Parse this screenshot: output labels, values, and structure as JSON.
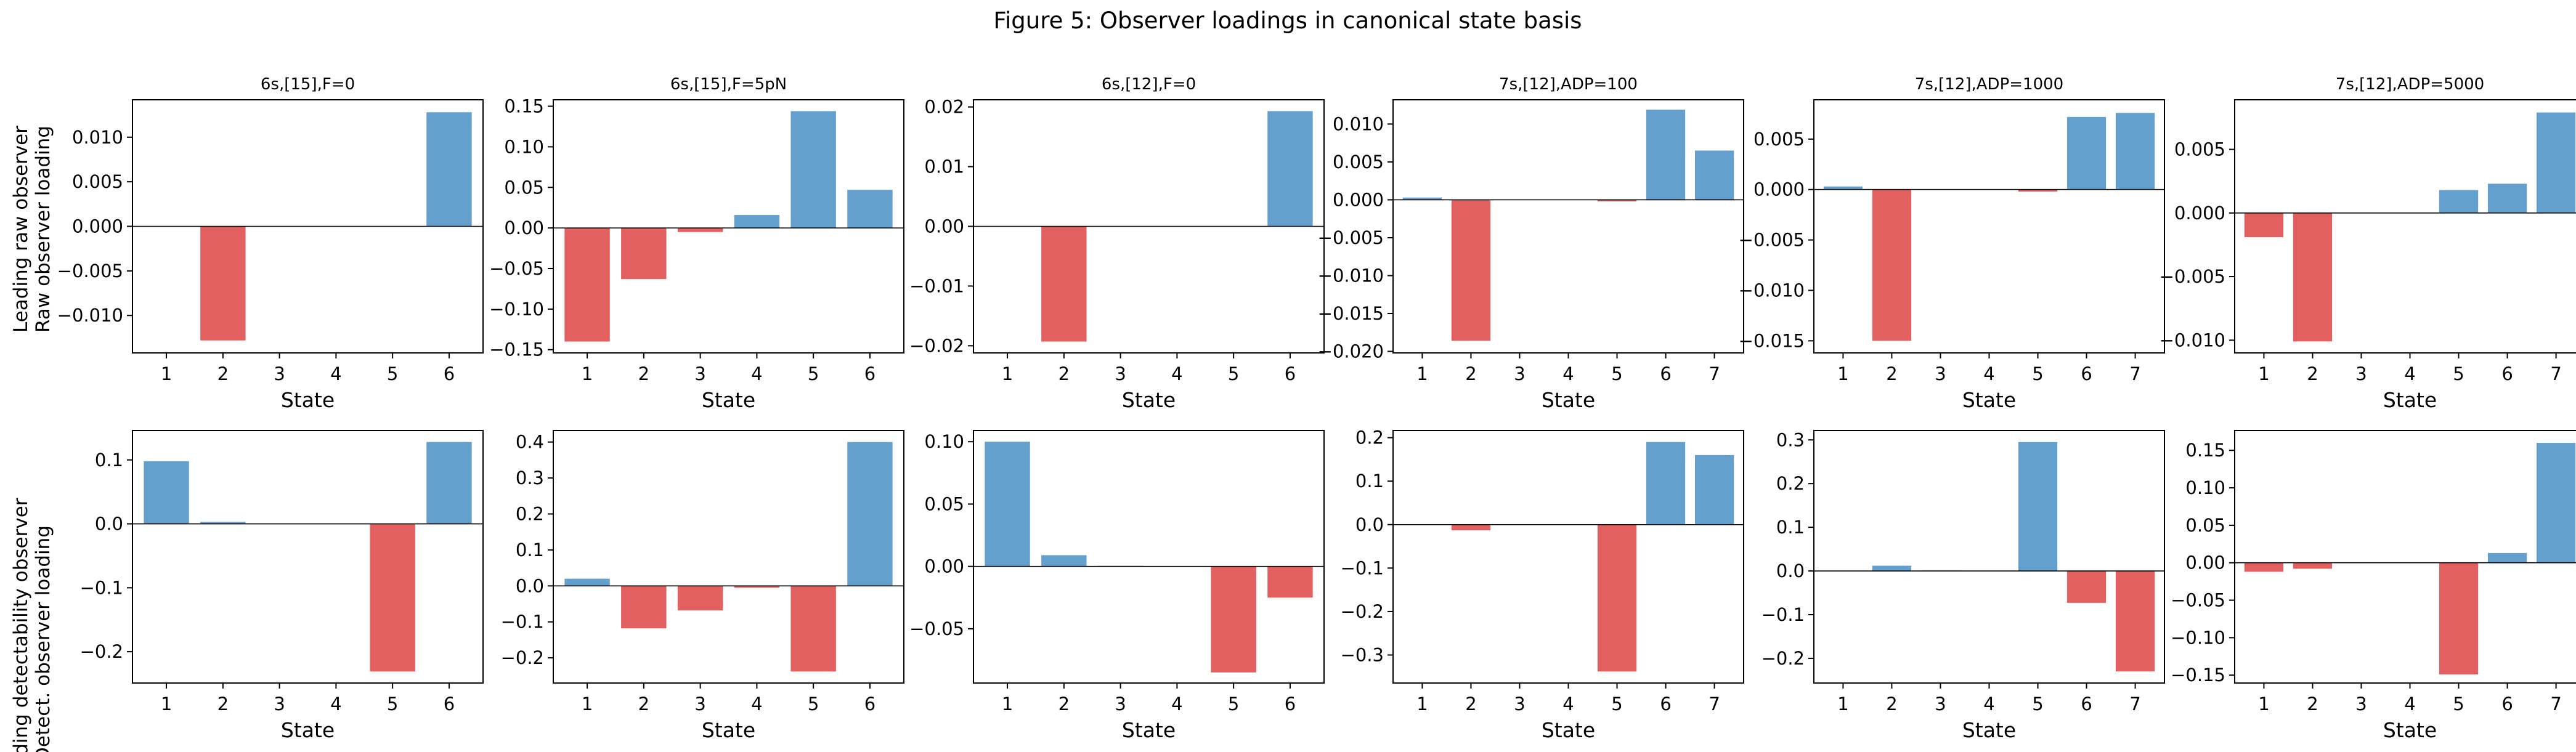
{
  "figure": {
    "title": "Figure 5: Observer loadings in canonical state basis",
    "row_labels": [
      [
        "Leading raw observer",
        "Raw observer loading"
      ],
      [
        "Leading detectability observer",
        "Detect. observer loading"
      ]
    ]
  },
  "colors": {
    "positive": "#5b9bcb",
    "negative": "#e15759",
    "zero_line": "#000000",
    "frame": "#000000"
  },
  "chart_data": [
    {
      "type": "bar",
      "title": "6s,[15],F=0",
      "xlabel": "State",
      "ylabel": "",
      "categories": [
        "1",
        "2",
        "3",
        "4",
        "5",
        "6"
      ],
      "values": [
        0,
        -0.0128,
        0,
        0,
        0,
        0.0128
      ],
      "ylim": [
        -0.0142,
        0.0142
      ],
      "yticks": [
        -0.01,
        -0.005,
        0.0,
        0.005,
        0.01
      ],
      "ytick_labels": [
        "−0.010",
        "−0.005",
        "0.000",
        "0.005",
        "0.010"
      ]
    },
    {
      "type": "bar",
      "title": "6s,[15],F=5pN",
      "xlabel": "State",
      "ylabel": "",
      "categories": [
        "1",
        "2",
        "3",
        "4",
        "5",
        "6"
      ],
      "values": [
        -0.14,
        -0.063,
        -0.005,
        0.016,
        0.144,
        0.047
      ],
      "ylim": [
        -0.154,
        0.158
      ],
      "yticks": [
        -0.15,
        -0.1,
        -0.05,
        0.0,
        0.05,
        0.1,
        0.15
      ],
      "ytick_labels": [
        "−0.15",
        "−0.10",
        "−0.05",
        "0.00",
        "0.05",
        "0.10",
        "0.15"
      ]
    },
    {
      "type": "bar",
      "title": "6s,[12],F=0",
      "xlabel": "State",
      "ylabel": "",
      "categories": [
        "1",
        "2",
        "3",
        "4",
        "5",
        "6"
      ],
      "values": [
        0,
        -0.0193,
        0,
        0,
        0,
        0.0193
      ],
      "ylim": [
        -0.0212,
        0.0212
      ],
      "yticks": [
        -0.02,
        -0.01,
        0.0,
        0.01,
        0.02
      ],
      "ytick_labels": [
        "−0.02",
        "−0.01",
        "0.00",
        "0.01",
        "0.02"
      ]
    },
    {
      "type": "bar",
      "title": "7s,[12],ADP=100",
      "xlabel": "State",
      "ylabel": "",
      "categories": [
        "1",
        "2",
        "3",
        "4",
        "5",
        "6",
        "7"
      ],
      "values": [
        0.0003,
        -0.0186,
        0,
        0,
        -0.0002,
        0.0119,
        0.0065
      ],
      "ylim": [
        -0.0202,
        0.0132
      ],
      "yticks": [
        -0.02,
        -0.015,
        -0.01,
        -0.005,
        0.0,
        0.005,
        0.01
      ],
      "ytick_labels": [
        "−0.020",
        "−0.015",
        "−0.010",
        "−0.005",
        "0.000",
        "0.005",
        "0.010"
      ]
    },
    {
      "type": "bar",
      "title": "7s,[12],ADP=1000",
      "xlabel": "State",
      "ylabel": "",
      "categories": [
        "1",
        "2",
        "3",
        "4",
        "5",
        "6",
        "7"
      ],
      "values": [
        0.0003,
        -0.015,
        0,
        0,
        -0.0002,
        0.0072,
        0.0076
      ],
      "ylim": [
        -0.0162,
        0.0089
      ],
      "yticks": [
        -0.015,
        -0.01,
        -0.005,
        0.0,
        0.005
      ],
      "ytick_labels": [
        "−0.015",
        "−0.010",
        "−0.005",
        "0.000",
        "0.005"
      ]
    },
    {
      "type": "bar",
      "title": "7s,[12],ADP=5000",
      "xlabel": "State",
      "ylabel": "",
      "categories": [
        "1",
        "2",
        "3",
        "4",
        "5",
        "6",
        "7"
      ],
      "values": [
        -0.0019,
        -0.0101,
        0,
        0,
        0.0018,
        0.0023,
        0.0079
      ],
      "ylim": [
        -0.011,
        0.0089
      ],
      "yticks": [
        -0.01,
        -0.005,
        0.0,
        0.005
      ],
      "ytick_labels": [
        "−0.010",
        "−0.005",
        "0.000",
        "0.005"
      ]
    },
    {
      "type": "bar",
      "title": "",
      "xlabel": "State",
      "ylabel": "",
      "categories": [
        "1",
        "2",
        "3",
        "4",
        "5",
        "6"
      ],
      "values": [
        0.098,
        0.003,
        0,
        0,
        -0.231,
        0.128
      ],
      "ylim": [
        -0.249,
        0.146
      ],
      "yticks": [
        -0.2,
        -0.1,
        0.0,
        0.1
      ],
      "ytick_labels": [
        "−0.2",
        "−0.1",
        "0.0",
        "0.1"
      ]
    },
    {
      "type": "bar",
      "title": "",
      "xlabel": "State",
      "ylabel": "",
      "categories": [
        "1",
        "2",
        "3",
        "4",
        "5",
        "6"
      ],
      "values": [
        0.02,
        -0.118,
        -0.068,
        -0.005,
        -0.238,
        0.4
      ],
      "ylim": [
        -0.27,
        0.432
      ],
      "yticks": [
        -0.2,
        -0.1,
        0.0,
        0.1,
        0.2,
        0.3,
        0.4
      ],
      "ytick_labels": [
        "−0.2",
        "−0.1",
        "0.0",
        "0.1",
        "0.2",
        "0.3",
        "0.4"
      ]
    },
    {
      "type": "bar",
      "title": "",
      "xlabel": "State",
      "ylabel": "",
      "categories": [
        "1",
        "2",
        "3",
        "4",
        "5",
        "6"
      ],
      "values": [
        0.1,
        0.009,
        0.0005,
        0,
        -0.085,
        -0.025
      ],
      "ylim": [
        -0.0935,
        0.109
      ],
      "yticks": [
        -0.05,
        0.0,
        0.05,
        0.1
      ],
      "ytick_labels": [
        "−0.05",
        "0.00",
        "0.05",
        "0.10"
      ]
    },
    {
      "type": "bar",
      "title": "",
      "xlabel": "State",
      "ylabel": "",
      "categories": [
        "1",
        "2",
        "3",
        "4",
        "5",
        "6",
        "7"
      ],
      "values": [
        0,
        -0.013,
        0,
        0,
        -0.338,
        0.19,
        0.16
      ],
      "ylim": [
        -0.3645,
        0.2165
      ],
      "yticks": [
        -0.3,
        -0.2,
        -0.1,
        0.0,
        0.1,
        0.2
      ],
      "ytick_labels": [
        "−0.3",
        "−0.2",
        "−0.1",
        "0.0",
        "0.1",
        "0.2"
      ]
    },
    {
      "type": "bar",
      "title": "",
      "xlabel": "State",
      "ylabel": "",
      "categories": [
        "1",
        "2",
        "3",
        "4",
        "5",
        "6",
        "7"
      ],
      "values": [
        0,
        0.012,
        0.001,
        0,
        0.295,
        -0.073,
        -0.23
      ],
      "ylim": [
        -0.2565,
        0.3215
      ],
      "yticks": [
        -0.2,
        -0.1,
        0.0,
        0.1,
        0.2,
        0.3
      ],
      "ytick_labels": [
        "−0.2",
        "−0.1",
        "0.0",
        "0.1",
        "0.2",
        "0.3"
      ]
    },
    {
      "type": "bar",
      "title": "",
      "xlabel": "State",
      "ylabel": "",
      "categories": [
        "1",
        "2",
        "3",
        "4",
        "5",
        "6",
        "7"
      ],
      "values": [
        -0.012,
        -0.008,
        0,
        0,
        -0.149,
        0.013,
        0.16
      ],
      "ylim": [
        -0.1605,
        0.1765
      ],
      "yticks": [
        -0.15,
        -0.1,
        -0.05,
        0.0,
        0.05,
        0.1,
        0.15
      ],
      "ytick_labels": [
        "−0.15",
        "−0.10",
        "−0.05",
        "0.00",
        "0.05",
        "0.10",
        "0.15"
      ]
    }
  ]
}
